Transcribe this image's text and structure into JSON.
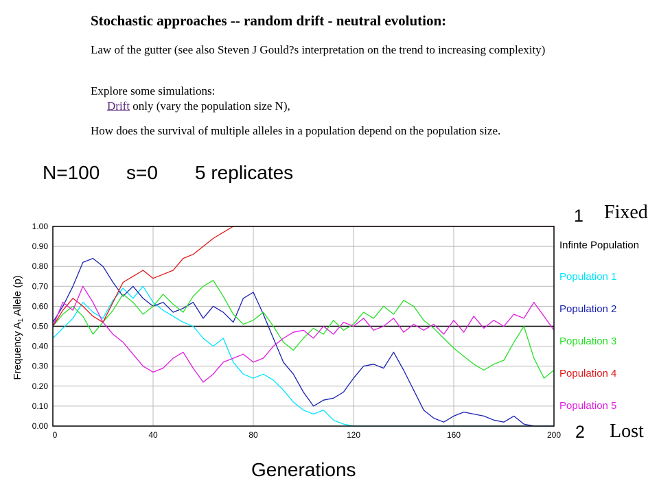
{
  "doc": {
    "title": "Stochastic approaches -- random drift - neutral evolution:",
    "law_line": "Law of the gutter (see also Steven J Gould?s interpretation on the trend to increasing complexity)",
    "explore_line": "Explore some simulations:",
    "drift_link": "Drift",
    "drift_rest": " only (vary the population size N),",
    "question": "How does the survival of multiple alleles in a population depend on the population size."
  },
  "params": {
    "n_label": "N=100",
    "s_label": "s=0",
    "replicates_label": "5 replicates"
  },
  "annotations": {
    "fixed_num": "1",
    "fixed_word": "Fixed",
    "lost_num": "2",
    "lost_word": "Lost"
  },
  "axis_titles": {
    "x": "Generations",
    "y_prefix": "Frequency A",
    "y_sub": "1",
    "y_suffix": " Allele (p)"
  },
  "chart_data": {
    "type": "line",
    "x_ticks": [
      0,
      40,
      80,
      120,
      160,
      200
    ],
    "y_ticks": [
      "0.00",
      "0.10",
      "0.20",
      "0.30",
      "0.40",
      "0.50",
      "0.60",
      "0.70",
      "0.80",
      "0.90",
      "1.00"
    ],
    "xlim": [
      0,
      200
    ],
    "ylim": [
      0,
      1
    ],
    "grid": true,
    "legend_position": "right",
    "series": [
      {
        "name": "Infinte Population",
        "color": "#000000",
        "points": [
          [
            0,
            0.5
          ],
          [
            200,
            0.5
          ]
        ]
      },
      {
        "name": "Population 1",
        "color": "#00e5ff",
        "points": [
          [
            0,
            0.44
          ],
          [
            4,
            0.49
          ],
          [
            8,
            0.54
          ],
          [
            12,
            0.62
          ],
          [
            16,
            0.57
          ],
          [
            20,
            0.54
          ],
          [
            24,
            0.63
          ],
          [
            28,
            0.69
          ],
          [
            32,
            0.64
          ],
          [
            36,
            0.7
          ],
          [
            40,
            0.62
          ],
          [
            44,
            0.58
          ],
          [
            48,
            0.55
          ],
          [
            52,
            0.52
          ],
          [
            56,
            0.5
          ],
          [
            60,
            0.44
          ],
          [
            64,
            0.4
          ],
          [
            68,
            0.44
          ],
          [
            72,
            0.32
          ],
          [
            76,
            0.26
          ],
          [
            80,
            0.24
          ],
          [
            84,
            0.26
          ],
          [
            88,
            0.23
          ],
          [
            92,
            0.18
          ],
          [
            96,
            0.12
          ],
          [
            100,
            0.08
          ],
          [
            104,
            0.06
          ],
          [
            108,
            0.08
          ],
          [
            112,
            0.03
          ],
          [
            116,
            0.01
          ],
          [
            120,
            0.0
          ],
          [
            200,
            0.0
          ]
        ]
      },
      {
        "name": "Population 2",
        "color": "#1a22b0",
        "points": [
          [
            0,
            0.52
          ],
          [
            4,
            0.6
          ],
          [
            8,
            0.7
          ],
          [
            12,
            0.82
          ],
          [
            16,
            0.84
          ],
          [
            20,
            0.8
          ],
          [
            24,
            0.72
          ],
          [
            28,
            0.65
          ],
          [
            32,
            0.7
          ],
          [
            36,
            0.64
          ],
          [
            40,
            0.6
          ],
          [
            44,
            0.62
          ],
          [
            48,
            0.57
          ],
          [
            52,
            0.59
          ],
          [
            56,
            0.62
          ],
          [
            60,
            0.54
          ],
          [
            64,
            0.6
          ],
          [
            68,
            0.57
          ],
          [
            72,
            0.52
          ],
          [
            76,
            0.64
          ],
          [
            80,
            0.67
          ],
          [
            84,
            0.56
          ],
          [
            88,
            0.44
          ],
          [
            92,
            0.32
          ],
          [
            96,
            0.26
          ],
          [
            100,
            0.17
          ],
          [
            104,
            0.1
          ],
          [
            108,
            0.13
          ],
          [
            112,
            0.14
          ],
          [
            116,
            0.17
          ],
          [
            120,
            0.24
          ],
          [
            124,
            0.3
          ],
          [
            128,
            0.31
          ],
          [
            132,
            0.29
          ],
          [
            136,
            0.37
          ],
          [
            140,
            0.28
          ],
          [
            144,
            0.18
          ],
          [
            148,
            0.08
          ],
          [
            152,
            0.04
          ],
          [
            156,
            0.02
          ],
          [
            160,
            0.05
          ],
          [
            164,
            0.07
          ],
          [
            168,
            0.06
          ],
          [
            172,
            0.05
          ],
          [
            176,
            0.03
          ],
          [
            180,
            0.02
          ],
          [
            184,
            0.05
          ],
          [
            188,
            0.01
          ],
          [
            192,
            0.0
          ],
          [
            200,
            0.0
          ]
        ]
      },
      {
        "name": "Population 3",
        "color": "#27e027",
        "points": [
          [
            0,
            0.5
          ],
          [
            4,
            0.56
          ],
          [
            8,
            0.6
          ],
          [
            12,
            0.55
          ],
          [
            16,
            0.46
          ],
          [
            20,
            0.52
          ],
          [
            24,
            0.58
          ],
          [
            28,
            0.66
          ],
          [
            32,
            0.62
          ],
          [
            36,
            0.56
          ],
          [
            40,
            0.6
          ],
          [
            44,
            0.66
          ],
          [
            48,
            0.61
          ],
          [
            52,
            0.57
          ],
          [
            56,
            0.65
          ],
          [
            60,
            0.7
          ],
          [
            64,
            0.73
          ],
          [
            68,
            0.65
          ],
          [
            72,
            0.56
          ],
          [
            76,
            0.51
          ],
          [
            80,
            0.53
          ],
          [
            84,
            0.57
          ],
          [
            88,
            0.5
          ],
          [
            92,
            0.42
          ],
          [
            96,
            0.38
          ],
          [
            100,
            0.44
          ],
          [
            104,
            0.49
          ],
          [
            108,
            0.46
          ],
          [
            112,
            0.53
          ],
          [
            116,
            0.48
          ],
          [
            120,
            0.51
          ],
          [
            124,
            0.57
          ],
          [
            128,
            0.54
          ],
          [
            132,
            0.6
          ],
          [
            136,
            0.56
          ],
          [
            140,
            0.63
          ],
          [
            144,
            0.6
          ],
          [
            148,
            0.53
          ],
          [
            152,
            0.49
          ],
          [
            156,
            0.44
          ],
          [
            160,
            0.39
          ],
          [
            164,
            0.35
          ],
          [
            168,
            0.31
          ],
          [
            172,
            0.28
          ],
          [
            176,
            0.31
          ],
          [
            180,
            0.33
          ],
          [
            184,
            0.42
          ],
          [
            188,
            0.5
          ],
          [
            192,
            0.34
          ],
          [
            196,
            0.24
          ],
          [
            200,
            0.28
          ]
        ]
      },
      {
        "name": "Population 4",
        "color": "#e01818",
        "points": [
          [
            0,
            0.5
          ],
          [
            4,
            0.58
          ],
          [
            8,
            0.64
          ],
          [
            12,
            0.6
          ],
          [
            16,
            0.55
          ],
          [
            20,
            0.52
          ],
          [
            24,
            0.62
          ],
          [
            28,
            0.72
          ],
          [
            32,
            0.75
          ],
          [
            36,
            0.78
          ],
          [
            40,
            0.74
          ],
          [
            44,
            0.76
          ],
          [
            48,
            0.78
          ],
          [
            52,
            0.84
          ],
          [
            56,
            0.86
          ],
          [
            60,
            0.9
          ],
          [
            64,
            0.94
          ],
          [
            68,
            0.97
          ],
          [
            72,
            1.0
          ],
          [
            200,
            1.0
          ]
        ]
      },
      {
        "name": "Population 5",
        "color": "#e01ce0",
        "points": [
          [
            0,
            0.5
          ],
          [
            4,
            0.62
          ],
          [
            8,
            0.58
          ],
          [
            12,
            0.7
          ],
          [
            16,
            0.62
          ],
          [
            20,
            0.52
          ],
          [
            24,
            0.46
          ],
          [
            28,
            0.42
          ],
          [
            32,
            0.36
          ],
          [
            36,
            0.3
          ],
          [
            40,
            0.27
          ],
          [
            44,
            0.29
          ],
          [
            48,
            0.34
          ],
          [
            52,
            0.37
          ],
          [
            56,
            0.29
          ],
          [
            60,
            0.22
          ],
          [
            64,
            0.26
          ],
          [
            68,
            0.32
          ],
          [
            72,
            0.34
          ],
          [
            76,
            0.36
          ],
          [
            80,
            0.32
          ],
          [
            84,
            0.34
          ],
          [
            88,
            0.4
          ],
          [
            92,
            0.44
          ],
          [
            96,
            0.47
          ],
          [
            100,
            0.48
          ],
          [
            104,
            0.44
          ],
          [
            108,
            0.5
          ],
          [
            112,
            0.46
          ],
          [
            116,
            0.52
          ],
          [
            120,
            0.5
          ],
          [
            124,
            0.54
          ],
          [
            128,
            0.48
          ],
          [
            132,
            0.5
          ],
          [
            136,
            0.54
          ],
          [
            140,
            0.47
          ],
          [
            144,
            0.51
          ],
          [
            148,
            0.48
          ],
          [
            152,
            0.51
          ],
          [
            156,
            0.46
          ],
          [
            160,
            0.53
          ],
          [
            164,
            0.47
          ],
          [
            168,
            0.55
          ],
          [
            172,
            0.49
          ],
          [
            176,
            0.53
          ],
          [
            180,
            0.5
          ],
          [
            184,
            0.56
          ],
          [
            188,
            0.54
          ],
          [
            192,
            0.62
          ],
          [
            196,
            0.55
          ],
          [
            200,
            0.48
          ]
        ]
      }
    ]
  }
}
